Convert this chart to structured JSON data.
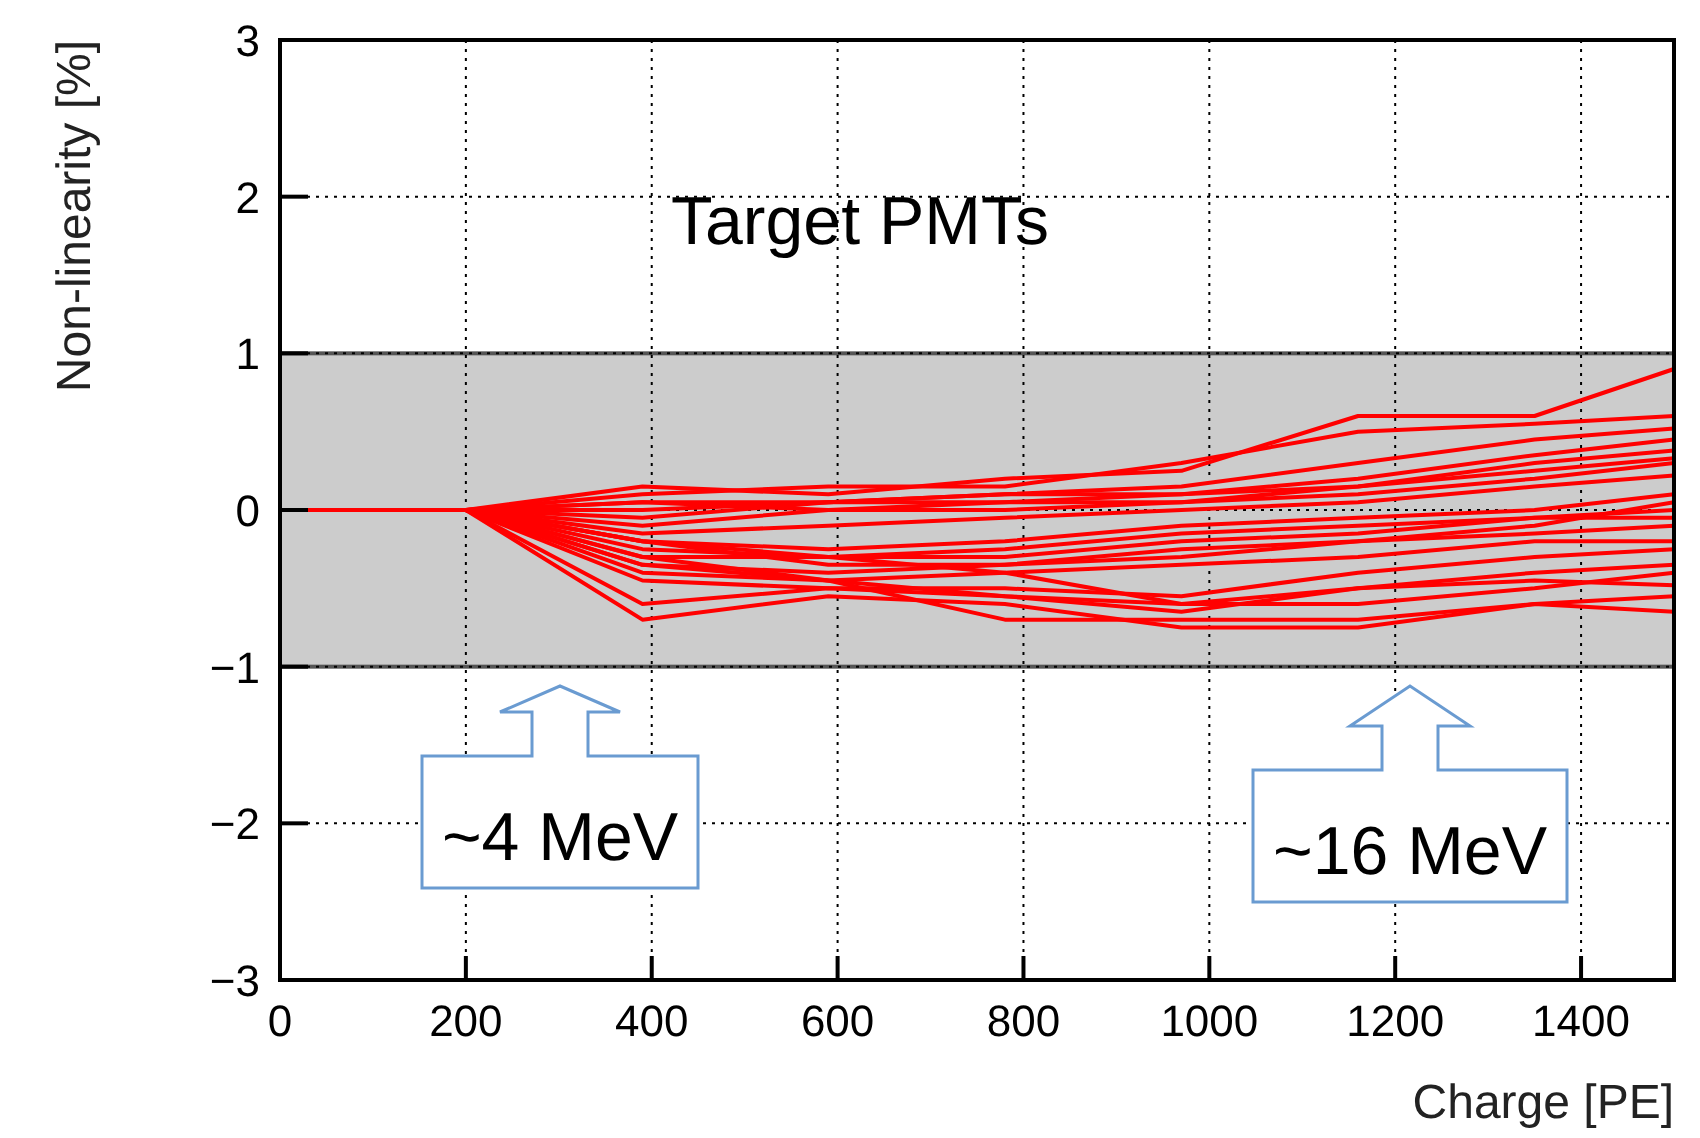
{
  "chart_data": {
    "type": "line",
    "xlabel": "Charge [PE]",
    "ylabel": "Non-linearity [%]",
    "xlim": [
      0,
      1500
    ],
    "xticks": [
      0,
      200,
      400,
      600,
      800,
      1000,
      1200,
      1400
    ],
    "ylim": [
      -3,
      3
    ],
    "yticks": [
      {
        "value": -3,
        "label": "−3"
      },
      {
        "value": -2,
        "label": "−2"
      },
      {
        "value": -1,
        "label": "−1"
      },
      0,
      1,
      2,
      3
    ],
    "grid": true,
    "marker": "none",
    "line_style": "solid",
    "bands": [
      {
        "axis": "y",
        "from": -1,
        "to": 1,
        "color": "#cccccc"
      }
    ],
    "annotations": [
      "Target PMTs",
      "~4 MeV",
      "~16 MeV"
    ],
    "x": [
      0,
      200,
      390,
      590,
      780,
      970,
      1160,
      1350,
      1500
    ],
    "series": [
      {
        "color": "#ff0000",
        "values": [
          0,
          0,
          0.15,
          0.1,
          0.2,
          0.25,
          0.6,
          0.6,
          0.9
        ]
      },
      {
        "color": "#ff0000",
        "values": [
          0,
          0,
          0.1,
          0.15,
          0.15,
          0.3,
          0.5,
          0.55,
          0.6
        ]
      },
      {
        "color": "#ff0000",
        "values": [
          0,
          0,
          0.05,
          0.05,
          0.1,
          0.15,
          0.3,
          0.45,
          0.52
        ]
      },
      {
        "color": "#ff0000",
        "values": [
          0,
          0,
          0,
          0.05,
          0.1,
          0.1,
          0.2,
          0.35,
          0.45
        ]
      },
      {
        "color": "#ff0000",
        "values": [
          0,
          0,
          0.05,
          0,
          0.05,
          0.05,
          0.15,
          0.3,
          0.38
        ]
      },
      {
        "color": "#ff0000",
        "values": [
          0,
          0,
          -0.05,
          0.05,
          0.05,
          0.1,
          0.15,
          0.25,
          0.33
        ]
      },
      {
        "color": "#ff0000",
        "values": [
          0,
          0,
          -0.1,
          0,
          0,
          0.05,
          0.1,
          0.2,
          0.3
        ]
      },
      {
        "color": "#ff0000",
        "values": [
          0,
          0,
          -0.15,
          -0.1,
          -0.05,
          0,
          0.05,
          0.15,
          0.22
        ]
      },
      {
        "color": "#ff0000",
        "values": [
          0,
          0,
          -0.2,
          -0.25,
          -0.2,
          -0.1,
          -0.05,
          0,
          0.1
        ]
      },
      {
        "color": "#ff0000",
        "values": [
          0,
          0,
          -0.25,
          -0.3,
          -0.25,
          -0.15,
          -0.1,
          -0.05,
          0
        ]
      },
      {
        "color": "#ff0000",
        "values": [
          0,
          0,
          -0.3,
          -0.3,
          -0.3,
          -0.2,
          -0.15,
          -0.05,
          -0.05
        ]
      },
      {
        "color": "#ff0000",
        "values": [
          0,
          0,
          -0.2,
          -0.35,
          -0.35,
          -0.25,
          -0.2,
          -0.1,
          0.05
        ]
      },
      {
        "color": "#ff0000",
        "values": [
          0,
          0,
          -0.35,
          -0.4,
          -0.35,
          -0.3,
          -0.2,
          -0.15,
          -0.1
        ]
      },
      {
        "color": "#ff0000",
        "values": [
          0,
          0,
          -0.4,
          -0.45,
          -0.4,
          -0.35,
          -0.3,
          -0.2,
          -0.2
        ]
      },
      {
        "color": "#ff0000",
        "values": [
          0,
          0,
          -0.45,
          -0.5,
          -0.5,
          -0.55,
          -0.4,
          -0.3,
          -0.25
        ]
      },
      {
        "color": "#ff0000",
        "values": [
          0,
          0,
          -0.3,
          -0.45,
          -0.55,
          -0.6,
          -0.5,
          -0.4,
          -0.35
        ]
      },
      {
        "color": "#ff0000",
        "values": [
          0,
          0,
          -0.6,
          -0.5,
          -0.55,
          -0.65,
          -0.5,
          -0.45,
          -0.48
        ]
      },
      {
        "color": "#ff0000",
        "values": [
          0,
          0,
          -0.7,
          -0.55,
          -0.6,
          -0.75,
          -0.75,
          -0.6,
          -0.55
        ]
      },
      {
        "color": "#ff0000",
        "values": [
          0,
          0,
          -0.35,
          -0.45,
          -0.7,
          -0.7,
          -0.7,
          -0.6,
          -0.65
        ]
      },
      {
        "color": "#ff0000",
        "values": [
          0,
          0,
          -0.2,
          -0.3,
          -0.4,
          -0.6,
          -0.6,
          -0.5,
          -0.4
        ]
      }
    ]
  }
}
